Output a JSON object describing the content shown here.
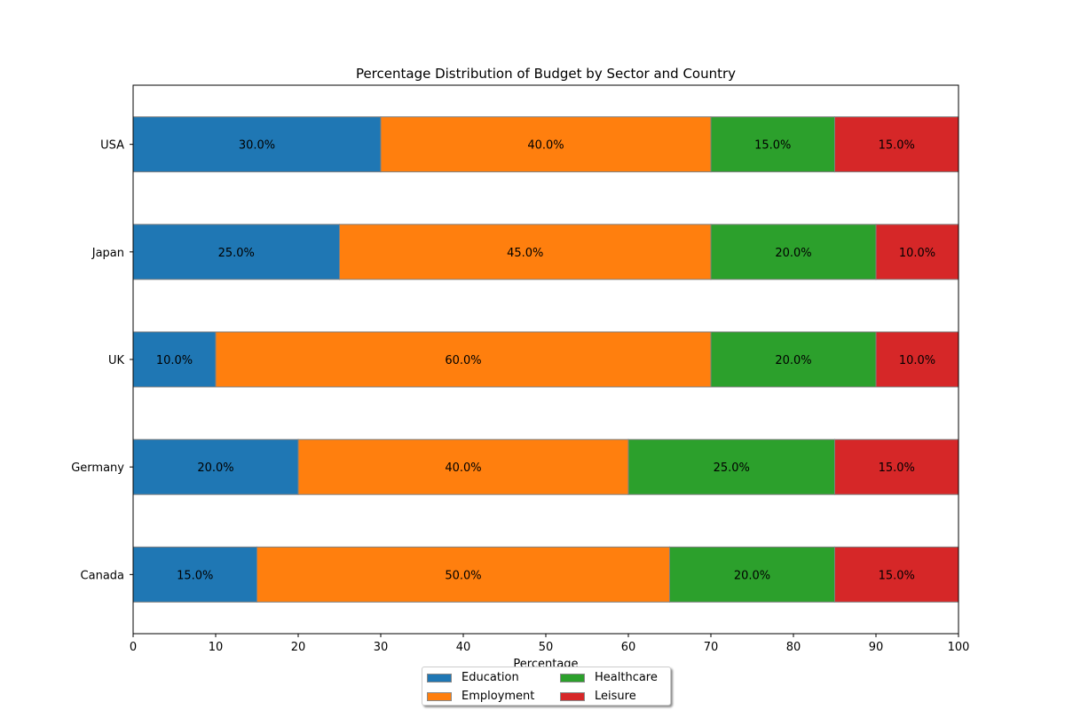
{
  "chart_data": {
    "type": "bar",
    "orientation": "horizontal",
    "stacked": true,
    "title": "Percentage Distribution of Budget by Sector and Country",
    "xlabel": "Percentage",
    "ylabel": "",
    "xlim": [
      0,
      100
    ],
    "xticks": [
      0,
      10,
      20,
      30,
      40,
      50,
      60,
      70,
      80,
      90,
      100
    ],
    "categories": [
      "Canada",
      "Germany",
      "UK",
      "Japan",
      "USA"
    ],
    "series": [
      {
        "name": "Education",
        "color": "#1f77b4",
        "values": [
          15,
          20,
          10,
          25,
          30
        ]
      },
      {
        "name": "Employment",
        "color": "#ff7f0e",
        "values": [
          50,
          40,
          60,
          45,
          40
        ]
      },
      {
        "name": "Healthcare",
        "color": "#2ca02c",
        "values": [
          20,
          25,
          20,
          20,
          15
        ]
      },
      {
        "name": "Leisure",
        "color": "#d62728",
        "values": [
          15,
          15,
          10,
          10,
          15
        ]
      }
    ],
    "label_format": "{v}.0%",
    "grid": false,
    "legend_position": "bottom-center"
  }
}
